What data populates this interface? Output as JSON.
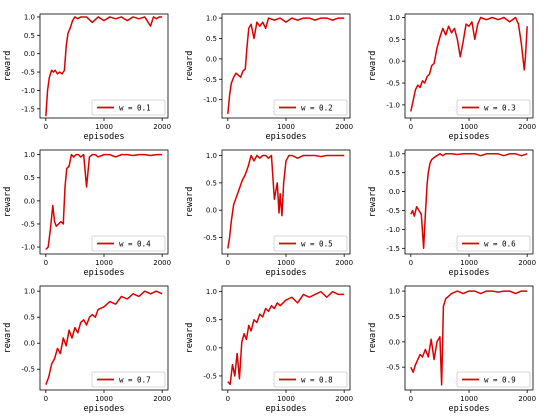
{
  "figure": {
    "xlabel": "episodes",
    "ylabel": "reward",
    "line_color": "#dd0000"
  },
  "chart_data": [
    {
      "type": "line",
      "legend_label": "w = 0.1",
      "legend_position": "bottom-right",
      "xlabel": "episodes",
      "ylabel": "reward",
      "xlim": [
        -100,
        2100
      ],
      "ylim": [
        -1.75,
        1.08
      ],
      "xticks": [
        0,
        1000,
        2000
      ],
      "yticks": [
        -1.5,
        -1.0,
        -0.5,
        0.0,
        0.5,
        1.0
      ],
      "ytick_labels": [
        "-1.5",
        "-1.0",
        "-0.5",
        "0.0",
        "0.5",
        "1.0"
      ],
      "series": [
        {
          "x": [
            0,
            30,
            60,
            100,
            130,
            160,
            200,
            240,
            280,
            320,
            350,
            380,
            420,
            460,
            500,
            550,
            600,
            700,
            800,
            900,
            1000,
            1100,
            1200,
            1300,
            1400,
            1500,
            1600,
            1700,
            1800,
            1850,
            1900,
            1950,
            2000
          ],
          "y": [
            -1.7,
            -1.0,
            -0.65,
            -0.45,
            -0.5,
            -0.45,
            -0.55,
            -0.5,
            -0.55,
            -0.45,
            0.2,
            0.55,
            0.7,
            0.9,
            1.0,
            0.95,
            1.0,
            1.0,
            0.85,
            1.0,
            0.9,
            1.0,
            0.95,
            1.0,
            0.9,
            1.0,
            0.95,
            1.0,
            0.75,
            1.0,
            0.95,
            1.0,
            1.0
          ]
        }
      ]
    },
    {
      "type": "line",
      "legend_label": "w = 0.2",
      "legend_position": "bottom-right",
      "xlabel": "episodes",
      "ylabel": "reward",
      "xlim": [
        -100,
        2100
      ],
      "ylim": [
        -1.45,
        1.1
      ],
      "xticks": [
        0,
        1000,
        2000
      ],
      "yticks": [
        -1.0,
        -0.5,
        0.0,
        0.5,
        1.0
      ],
      "ytick_labels": [
        "-1.0",
        "-0.5",
        "0.0",
        "0.5",
        "1.0"
      ],
      "series": [
        {
          "x": [
            0,
            30,
            60,
            100,
            140,
            180,
            220,
            260,
            300,
            330,
            360,
            400,
            450,
            500,
            550,
            600,
            650,
            700,
            800,
            900,
            1000,
            1100,
            1200,
            1300,
            1400,
            1500,
            1600,
            1700,
            1800,
            1900,
            2000
          ],
          "y": [
            -1.35,
            -0.9,
            -0.6,
            -0.45,
            -0.35,
            -0.4,
            -0.45,
            -0.3,
            -0.25,
            0.3,
            0.75,
            0.85,
            0.5,
            0.9,
            0.8,
            0.9,
            0.75,
            1.0,
            0.95,
            1.0,
            0.9,
            1.0,
            0.95,
            1.0,
            1.0,
            0.95,
            1.0,
            1.0,
            0.95,
            1.0,
            1.0
          ]
        }
      ]
    },
    {
      "type": "line",
      "legend_label": "w = 0.3",
      "legend_position": "bottom-right",
      "xlabel": "episodes",
      "ylabel": "reward",
      "xlim": [
        -100,
        2100
      ],
      "ylim": [
        -1.3,
        1.08
      ],
      "xticks": [
        0,
        1000,
        2000
      ],
      "yticks": [
        -1.0,
        -0.5,
        0.0,
        0.5,
        1.0
      ],
      "ytick_labels": [
        "-1.0",
        "-0.5",
        "0.0",
        "0.5",
        "1.0"
      ],
      "series": [
        {
          "x": [
            0,
            40,
            80,
            120,
            160,
            200,
            240,
            280,
            320,
            360,
            400,
            450,
            500,
            550,
            600,
            650,
            700,
            750,
            800,
            850,
            900,
            950,
            1000,
            1050,
            1100,
            1150,
            1200,
            1300,
            1400,
            1500,
            1600,
            1700,
            1800,
            1850,
            1900,
            1950,
            1970,
            2000
          ],
          "y": [
            -1.15,
            -0.9,
            -0.65,
            -0.55,
            -0.6,
            -0.45,
            -0.5,
            -0.35,
            -0.3,
            -0.1,
            -0.05,
            0.3,
            0.55,
            0.75,
            0.6,
            0.8,
            0.65,
            0.75,
            0.5,
            0.1,
            0.45,
            0.85,
            0.8,
            0.9,
            0.5,
            0.85,
            1.0,
            0.95,
            1.0,
            0.95,
            1.0,
            0.9,
            1.0,
            0.85,
            0.4,
            -0.2,
            0.1,
            0.8
          ]
        }
      ]
    },
    {
      "type": "line",
      "legend_label": "w = 0.4",
      "legend_position": "bottom-right",
      "xlabel": "episodes",
      "ylabel": "reward",
      "xlim": [
        -100,
        2100
      ],
      "ylim": [
        -1.15,
        1.1
      ],
      "xticks": [
        0,
        1000,
        2000
      ],
      "yticks": [
        -1.0,
        -0.5,
        0.0,
        0.5,
        1.0
      ],
      "ytick_labels": [
        "-1.0",
        "-0.5",
        "0.0",
        "0.5",
        "1.0"
      ],
      "series": [
        {
          "x": [
            0,
            40,
            80,
            120,
            150,
            180,
            220,
            260,
            300,
            330,
            360,
            400,
            440,
            480,
            520,
            560,
            600,
            650,
            700,
            750,
            800,
            850,
            900,
            1000,
            1100,
            1200,
            1300,
            1400,
            1500,
            1600,
            1700,
            1800,
            1900,
            2000
          ],
          "y": [
            -1.05,
            -1.0,
            -0.6,
            -0.1,
            -0.45,
            -0.55,
            -0.5,
            -0.45,
            -0.5,
            0.3,
            0.7,
            0.75,
            1.0,
            0.95,
            1.0,
            1.0,
            0.95,
            1.0,
            0.3,
            0.95,
            1.0,
            1.0,
            0.95,
            1.0,
            1.0,
            0.95,
            1.0,
            1.0,
            0.98,
            1.0,
            1.0,
            0.98,
            1.0,
            1.0
          ]
        }
      ]
    },
    {
      "type": "line",
      "legend_label": "w = 0.5",
      "legend_position": "bottom-right",
      "xlabel": "episodes",
      "ylabel": "reward",
      "xlim": [
        -100,
        2100
      ],
      "ylim": [
        -0.8,
        1.1
      ],
      "xticks": [
        0,
        1000,
        2000
      ],
      "yticks": [
        -0.5,
        0.0,
        0.5,
        1.0
      ],
      "ytick_labels": [
        "-0.5",
        "0.0",
        "0.5",
        "1.0"
      ],
      "series": [
        {
          "x": [
            0,
            30,
            60,
            100,
            150,
            200,
            250,
            300,
            350,
            400,
            450,
            500,
            550,
            600,
            650,
            700,
            750,
            800,
            850,
            880,
            900,
            930,
            960,
            1000,
            1050,
            1100,
            1200,
            1300,
            1400,
            1500,
            1600,
            1700,
            1800,
            1900,
            2000
          ],
          "y": [
            -0.7,
            -0.5,
            -0.2,
            0.1,
            0.25,
            0.4,
            0.55,
            0.65,
            0.8,
            1.0,
            0.9,
            1.0,
            0.95,
            1.0,
            1.0,
            0.95,
            1.0,
            0.2,
            0.5,
            -0.05,
            0.3,
            -0.1,
            0.5,
            0.9,
            1.0,
            1.0,
            0.95,
            1.0,
            1.0,
            1.0,
            0.98,
            1.0,
            1.0,
            1.0,
            1.0
          ]
        }
      ]
    },
    {
      "type": "line",
      "legend_label": "w = 0.6",
      "legend_position": "bottom-right",
      "xlabel": "episodes",
      "ylabel": "reward",
      "xlim": [
        -100,
        2100
      ],
      "ylim": [
        -1.65,
        1.1
      ],
      "xticks": [
        0,
        1000,
        2000
      ],
      "yticks": [
        -1.5,
        -1.0,
        -0.5,
        0.0,
        0.5,
        1.0
      ],
      "ytick_labels": [
        "-1.5",
        "-1.0",
        "-0.5",
        "0.0",
        "0.5",
        "1.0"
      ],
      "series": [
        {
          "x": [
            0,
            30,
            60,
            100,
            140,
            180,
            220,
            250,
            280,
            300,
            330,
            360,
            400,
            450,
            500,
            550,
            600,
            700,
            800,
            900,
            1000,
            1100,
            1200,
            1300,
            1400,
            1500,
            1600,
            1700,
            1800,
            1900,
            2000
          ],
          "y": [
            -0.6,
            -0.5,
            -0.65,
            -0.4,
            -0.5,
            -0.6,
            -1.5,
            -0.6,
            0.2,
            0.5,
            0.75,
            0.85,
            0.9,
            0.95,
            1.0,
            0.95,
            1.0,
            1.0,
            0.98,
            1.0,
            1.0,
            1.0,
            0.95,
            1.0,
            1.0,
            1.0,
            0.95,
            1.0,
            1.0,
            0.95,
            1.0
          ]
        }
      ]
    },
    {
      "type": "line",
      "legend_label": "w = 0.7",
      "legend_position": "bottom-right",
      "xlabel": "episodes",
      "ylabel": "reward",
      "xlim": [
        -100,
        2100
      ],
      "ylim": [
        -0.9,
        1.1
      ],
      "xticks": [
        0,
        1000,
        2000
      ],
      "yticks": [
        -0.5,
        0.0,
        0.5,
        1.0
      ],
      "ytick_labels": [
        "-0.5",
        "0.0",
        "0.5",
        "1.0"
      ],
      "series": [
        {
          "x": [
            0,
            50,
            100,
            150,
            200,
            250,
            300,
            350,
            400,
            450,
            500,
            550,
            600,
            650,
            700,
            750,
            800,
            850,
            900,
            1000,
            1100,
            1200,
            1300,
            1400,
            1500,
            1600,
            1700,
            1800,
            1900,
            2000
          ],
          "y": [
            -0.8,
            -0.65,
            -0.4,
            -0.3,
            -0.1,
            -0.2,
            0.1,
            -0.05,
            0.25,
            0.1,
            0.3,
            0.2,
            0.4,
            0.45,
            0.35,
            0.5,
            0.55,
            0.5,
            0.65,
            0.7,
            0.8,
            0.75,
            0.9,
            0.85,
            0.95,
            0.9,
            1.0,
            0.95,
            1.0,
            0.95
          ]
        }
      ]
    },
    {
      "type": "line",
      "legend_label": "w = 0.8",
      "legend_position": "bottom-right",
      "xlabel": "episodes",
      "ylabel": "reward",
      "xlim": [
        -100,
        2100
      ],
      "ylim": [
        -0.75,
        1.1
      ],
      "xticks": [
        0,
        1000,
        2000
      ],
      "yticks": [
        -0.5,
        0.0,
        0.5,
        1.0
      ],
      "ytick_labels": [
        "-0.5",
        "0.0",
        "0.5",
        "1.0"
      ],
      "series": [
        {
          "x": [
            0,
            40,
            80,
            120,
            160,
            200,
            240,
            280,
            320,
            360,
            400,
            450,
            500,
            550,
            600,
            650,
            700,
            750,
            800,
            850,
            900,
            1000,
            1100,
            1200,
            1300,
            1400,
            1500,
            1600,
            1700,
            1800,
            1900,
            2000
          ],
          "y": [
            -0.6,
            -0.65,
            -0.3,
            -0.5,
            -0.1,
            -0.55,
            0.1,
            0.25,
            0.15,
            0.4,
            0.3,
            0.5,
            0.45,
            0.6,
            0.55,
            0.7,
            0.65,
            0.75,
            0.7,
            0.8,
            0.75,
            0.85,
            0.9,
            0.8,
            0.95,
            0.9,
            0.95,
            1.0,
            0.9,
            1.0,
            0.95,
            0.95
          ]
        }
      ]
    },
    {
      "type": "line",
      "legend_label": "w = 0.9",
      "legend_position": "bottom-right",
      "xlabel": "episodes",
      "ylabel": "reward",
      "xlim": [
        -100,
        2100
      ],
      "ylim": [
        -0.95,
        1.1
      ],
      "xticks": [
        0,
        1000,
        2000
      ],
      "yticks": [
        -0.5,
        0.0,
        0.5,
        1.0
      ],
      "ytick_labels": [
        "-0.5",
        "0.0",
        "0.5",
        "1.0"
      ],
      "series": [
        {
          "x": [
            0,
            40,
            80,
            120,
            160,
            200,
            250,
            300,
            350,
            400,
            450,
            500,
            530,
            560,
            600,
            650,
            700,
            800,
            900,
            1000,
            1100,
            1200,
            1300,
            1400,
            1500,
            1600,
            1700,
            1800,
            1900,
            2000
          ],
          "y": [
            -0.5,
            -0.6,
            -0.45,
            -0.35,
            -0.25,
            -0.3,
            -0.15,
            -0.3,
            0.05,
            -0.35,
            0.0,
            0.1,
            -0.85,
            0.7,
            0.85,
            0.9,
            0.95,
            1.0,
            0.95,
            1.0,
            1.0,
            0.95,
            1.0,
            1.0,
            0.98,
            1.0,
            1.0,
            0.95,
            1.0,
            1.0
          ]
        }
      ]
    }
  ]
}
